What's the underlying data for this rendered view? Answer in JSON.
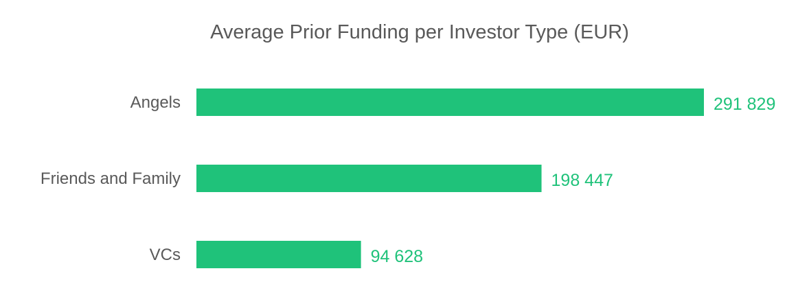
{
  "chart_data": {
    "type": "bar",
    "orientation": "horizontal",
    "title": "Average Prior Funding per Investor Type (EUR)",
    "categories": [
      "Angels",
      "Friends and Family",
      "VCs"
    ],
    "values": [
      291829,
      198447,
      94628
    ],
    "value_labels": [
      "291 829",
      "198 447",
      "94 628"
    ],
    "xlabel": "",
    "ylabel": "",
    "xlim": [
      0,
      291829
    ],
    "grid": false,
    "legend": "none",
    "bar_color": "#1fc27a",
    "label_color": "#1fc27a"
  }
}
